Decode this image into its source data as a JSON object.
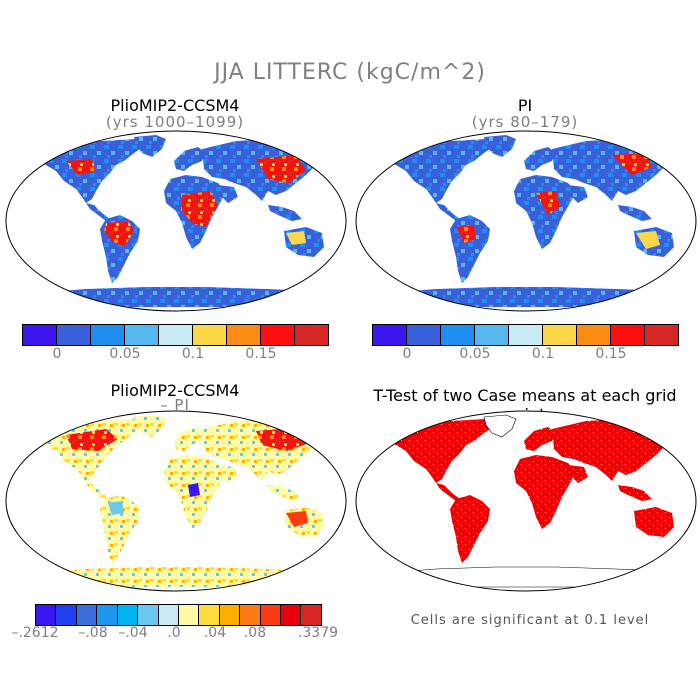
{
  "main_title": "JJA LITTERC (kgC/m^2)",
  "panels": [
    {
      "title": "PlioMIP2-CCSM4",
      "subtitle": "(yrs 1000–1099)"
    },
    {
      "title": "PI",
      "subtitle": "(yrs 80–179)"
    },
    {
      "title": "PlioMIP2-CCSM4",
      "subtitle": "– PI"
    },
    {
      "title": "T-Test of two Case means at each grid point",
      "subtitle": ""
    }
  ],
  "colorbar_top": {
    "colors": [
      "#3b16ee",
      "#3a5fdb",
      "#1e8ff0",
      "#55b9ef",
      "#c8ebf5",
      "#fdd74a",
      "#fc8b13",
      "#fb0f0f",
      "#d62727"
    ],
    "ticks": [
      "0",
      "0.05",
      "0.1",
      "0.15"
    ]
  },
  "colorbar_bottom": {
    "colors": [
      "#3a17ee",
      "#1e40f0",
      "#3a6fdb",
      "#1e96f0",
      "#00b4f0",
      "#6cc7ef",
      "#c8ebf5",
      "#fffaa4",
      "#fedc3c",
      "#fbb000",
      "#fb7a13",
      "#fb3c13",
      "#e8000c",
      "#d62727"
    ],
    "ticks": [
      "–.2612",
      "–.08",
      "–.04",
      ".0",
      ".04",
      ".08",
      ".3379"
    ]
  },
  "note": "Cells are significant at 0.1 level"
}
